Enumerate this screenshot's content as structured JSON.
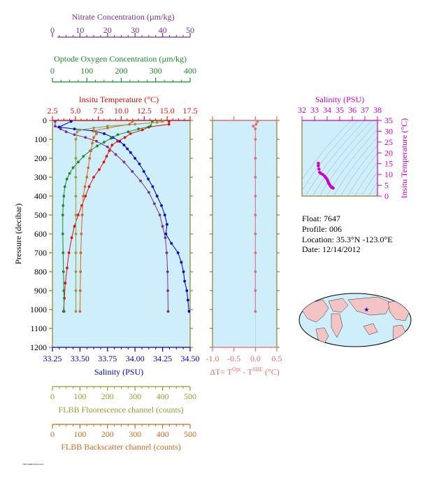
{
  "colors": {
    "nitrate": "#7b2d8b",
    "oxygen": "#1a8a2a",
    "temperature": "#e01010",
    "salinity_main": "#0000cc",
    "fluorescence": "#9b9a2e",
    "backscatter": "#d2691e",
    "delta": "#e86a6a",
    "salinity_ts": "#cc00cc",
    "panel_bg": "#cdeefa"
  },
  "chart_data": [
    {
      "type": "line",
      "id": "profile",
      "ylabel": "Pressure (decibar)",
      "ylim": [
        1200,
        0
      ],
      "yticks": [
        "0",
        "100",
        "200",
        "300",
        "400",
        "500",
        "600",
        "700",
        "800",
        "900",
        "1000",
        "1100",
        "1200"
      ],
      "axes": {
        "nitrate": {
          "label": "Nitrate Concentration (µm/kg)",
          "range": [
            0,
            50
          ],
          "ticks": [
            "0",
            "10",
            "20",
            "30",
            "40",
            "50"
          ]
        },
        "oxygen": {
          "label": "Optode Oxygen Concentration (µm/kg)",
          "range": [
            0,
            400
          ],
          "ticks": [
            "0",
            "100",
            "200",
            "300",
            "400"
          ]
        },
        "temperature": {
          "label": "Insitu Temperature (°C)",
          "range": [
            2.5,
            17.5
          ],
          "ticks": [
            "2.5",
            "5.0",
            "7.5",
            "10.0",
            "12.5",
            "15.0",
            "17.5"
          ]
        },
        "salinity": {
          "label": "Salinity (PSU)",
          "range": [
            33.25,
            34.5
          ],
          "ticks": [
            "33.25",
            "33.50",
            "33.75",
            "34.00",
            "34.25",
            "34.50"
          ]
        },
        "fluorescence": {
          "label": "FLBB Fluorescence channel (counts)",
          "range": [
            0,
            500
          ],
          "ticks": [
            "0",
            "100",
            "200",
            "300",
            "400",
            "500"
          ]
        },
        "backscatter": {
          "label": "FLBB Backscatter channel (counts)",
          "range": [
            0,
            500
          ],
          "ticks": [
            "0",
            "100",
            "200",
            "300",
            "400",
            "500"
          ]
        }
      },
      "series": [
        {
          "key": "salinity",
          "axis": "salinity",
          "points": [
            [
              33.42,
              5
            ],
            [
              33.31,
              35
            ],
            [
              33.45,
              45
            ],
            [
              33.62,
              55
            ],
            [
              33.72,
              70
            ],
            [
              33.8,
              90
            ],
            [
              33.86,
              110
            ],
            [
              33.9,
              130
            ],
            [
              33.93,
              150
            ],
            [
              33.96,
              170
            ],
            [
              34.0,
              200
            ],
            [
              34.04,
              230
            ],
            [
              34.08,
              270
            ],
            [
              34.12,
              310
            ],
            [
              34.16,
              350
            ],
            [
              34.2,
              400
            ],
            [
              34.24,
              450
            ],
            [
              34.27,
              500
            ],
            [
              34.29,
              550
            ],
            [
              34.28,
              600
            ],
            [
              34.33,
              650
            ],
            [
              34.39,
              700
            ],
            [
              34.42,
              750
            ],
            [
              34.44,
              800
            ],
            [
              34.45,
              850
            ],
            [
              34.47,
              900
            ],
            [
              34.48,
              950
            ],
            [
              34.49,
              1010
            ]
          ]
        },
        {
          "key": "temperature",
          "axis": "temperature",
          "points": [
            [
              15.2,
              5
            ],
            [
              15.2,
              20
            ],
            [
              13.0,
              35
            ],
            [
              12.3,
              50
            ],
            [
              11.0,
              70
            ],
            [
              10.4,
              90
            ],
            [
              9.6,
              110
            ],
            [
              9.0,
              130
            ],
            [
              8.7,
              160
            ],
            [
              8.4,
              190
            ],
            [
              8.1,
              220
            ],
            [
              7.6,
              260
            ],
            [
              7.0,
              300
            ],
            [
              6.5,
              350
            ],
            [
              6.1,
              400
            ],
            [
              5.7,
              450
            ],
            [
              5.3,
              500
            ],
            [
              4.9,
              560
            ],
            [
              4.6,
              620
            ],
            [
              4.3,
              700
            ],
            [
              4.1,
              780
            ],
            [
              3.9,
              860
            ],
            [
              3.8,
              940
            ],
            [
              3.7,
              1010
            ]
          ]
        },
        {
          "key": "nitrate",
          "axis": "nitrate",
          "points": [
            [
              1,
              5
            ],
            [
              1,
              30
            ],
            [
              3,
              45
            ],
            [
              5,
              60
            ],
            [
              8,
              75
            ],
            [
              12,
              90
            ],
            [
              16,
              110
            ],
            [
              20,
              140
            ],
            [
              23,
              180
            ],
            [
              26,
              220
            ],
            [
              29,
              270
            ],
            [
              32,
              320
            ],
            [
              35,
              380
            ],
            [
              37,
              440
            ],
            [
              39,
              500
            ],
            [
              40,
              560
            ],
            [
              41,
              620
            ],
            [
              41.5,
              700
            ],
            [
              41.8,
              800
            ],
            [
              41.9,
              900
            ],
            [
              42,
              1010
            ]
          ]
        },
        {
          "key": "oxygen",
          "axis": "oxygen",
          "points": [
            [
              290,
              5
            ],
            [
              285,
              30
            ],
            [
              250,
              45
            ],
            [
              220,
              60
            ],
            [
              190,
              75
            ],
            [
              170,
              95
            ],
            [
              150,
              115
            ],
            [
              130,
              135
            ],
            [
              110,
              160
            ],
            [
              90,
              190
            ],
            [
              75,
              220
            ],
            [
              60,
              250
            ],
            [
              50,
              280
            ],
            [
              42,
              310
            ],
            [
              36,
              350
            ],
            [
              33,
              400
            ],
            [
              31,
              450
            ],
            [
              30,
              500
            ],
            [
              30,
              600
            ],
            [
              31,
              700
            ],
            [
              32,
              800
            ],
            [
              33,
              900
            ],
            [
              34,
              1010
            ]
          ]
        },
        {
          "key": "fluorescence",
          "axis": "fluorescence",
          "points": [
            [
              400,
              5
            ],
            [
              380,
              10
            ],
            [
              300,
              20
            ],
            [
              200,
              30
            ],
            [
              150,
              40
            ],
            [
              100,
              50
            ],
            [
              90,
              60
            ],
            [
              85,
              100
            ],
            [
              85,
              200
            ],
            [
              85,
              300
            ],
            [
              85,
              400
            ],
            [
              85,
              500
            ],
            [
              85,
              600
            ],
            [
              85,
              700
            ],
            [
              85,
              800
            ],
            [
              85,
              900
            ],
            [
              85,
              1010
            ]
          ]
        },
        {
          "key": "backscatter",
          "axis": "backscatter",
          "points": [
            [
              290,
              5
            ],
            [
              280,
              20
            ],
            [
              200,
              40
            ],
            [
              150,
              55
            ],
            [
              160,
              70
            ],
            [
              150,
              90
            ],
            [
              145,
              120
            ],
            [
              140,
              160
            ],
            [
              135,
              200
            ],
            [
              130,
              250
            ],
            [
              125,
              300
            ],
            [
              118,
              350
            ],
            [
              112,
              400
            ],
            [
              108,
              500
            ],
            [
              105,
              600
            ],
            [
              103,
              700
            ],
            [
              102,
              800
            ],
            [
              101,
              900
            ],
            [
              100,
              1010
            ]
          ]
        }
      ]
    },
    {
      "type": "line",
      "id": "delta",
      "xlabel_base": "ΔT= T",
      "xlabel_sup1": "Opt",
      "xlabel_mid": " - T",
      "xlabel_sup2": "SBE",
      "xlabel_unit": " (°C)",
      "xlim": [
        -1.0,
        0.5
      ],
      "xticks": [
        "-1.0",
        "-0.5",
        "0.0",
        "0.5"
      ],
      "ylim": [
        1200,
        0
      ],
      "points": [
        [
          0.05,
          5
        ],
        [
          0.02,
          20
        ],
        [
          -0.05,
          30
        ],
        [
          0.0,
          45
        ],
        [
          0.0,
          100
        ],
        [
          0.0,
          200
        ],
        [
          0.0,
          300
        ],
        [
          0.0,
          400
        ],
        [
          0.0,
          500
        ],
        [
          0.0,
          600
        ],
        [
          0.0,
          700
        ],
        [
          0.0,
          800
        ],
        [
          0.0,
          900
        ],
        [
          0.0,
          1010
        ]
      ]
    },
    {
      "type": "scatter",
      "id": "ts",
      "xlabel": "Salinity (PSU)",
      "ylabel": "Insitu Temperature (°C)",
      "xlim": [
        32,
        38
      ],
      "ylim": [
        0,
        35
      ],
      "xticks": [
        "32",
        "33",
        "34",
        "35",
        "36",
        "37",
        "38"
      ],
      "yticks": [
        "0",
        "5",
        "10",
        "15",
        "20",
        "25",
        "30",
        "35"
      ],
      "points": [
        [
          33.3,
          15.2
        ],
        [
          33.3,
          14.0
        ],
        [
          33.35,
          12.5
        ],
        [
          33.4,
          11.0
        ],
        [
          33.5,
          10.5
        ],
        [
          33.65,
          10.0
        ],
        [
          33.8,
          9.2
        ],
        [
          33.9,
          8.5
        ],
        [
          34.0,
          7.7
        ],
        [
          34.05,
          7.0
        ],
        [
          34.1,
          6.3
        ],
        [
          34.15,
          5.8
        ],
        [
          34.2,
          5.3
        ],
        [
          34.25,
          4.8
        ],
        [
          34.3,
          4.4
        ],
        [
          34.35,
          4.1
        ],
        [
          34.4,
          3.9
        ],
        [
          34.45,
          3.8
        ],
        [
          34.48,
          3.7
        ]
      ]
    }
  ],
  "info": {
    "float": "Float:  7647",
    "profile": "Profile:  006",
    "location": "Location:  35.3°N  -123.0°E",
    "date": "Date:  12/14/2012"
  },
  "map": {
    "marker_lon": -123.0,
    "marker_lat": 35.3
  },
  "footer_tag": "7647/0060/20121214"
}
